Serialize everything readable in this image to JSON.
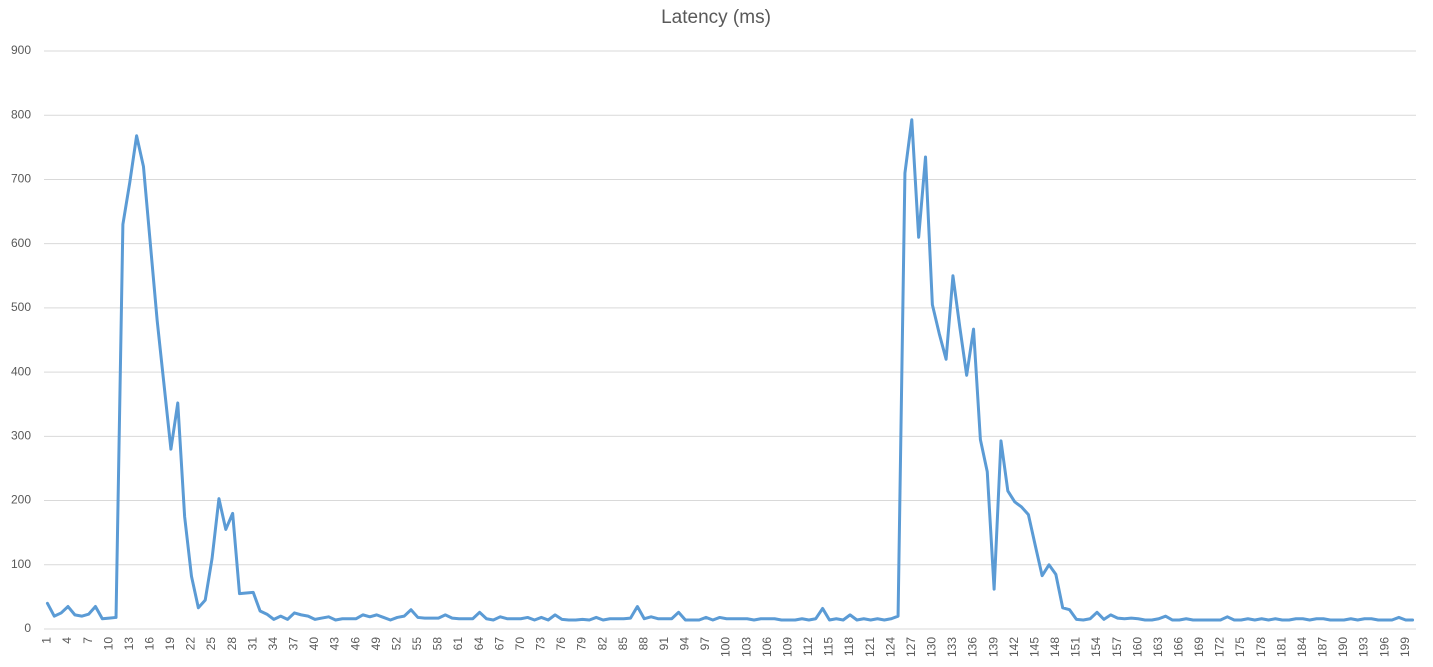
{
  "chart_data": {
    "type": "line",
    "title": "Latency (ms)",
    "categories": [
      1,
      null,
      null,
      4,
      null,
      null,
      7,
      null,
      null,
      10,
      null,
      null,
      13,
      null,
      null,
      16,
      null,
      null,
      19,
      null,
      null,
      22,
      null,
      null,
      25,
      null,
      null,
      28,
      null,
      null,
      31,
      null,
      null,
      34,
      null,
      null,
      37,
      null,
      null,
      40,
      null,
      null,
      43,
      null,
      null,
      46,
      null,
      null,
      49,
      null,
      null,
      52,
      null,
      null,
      55,
      null,
      null,
      58,
      null,
      null,
      61,
      null,
      null,
      64,
      null,
      null,
      67,
      null,
      null,
      70,
      null,
      null,
      73,
      null,
      null,
      76,
      null,
      null,
      79,
      null,
      null,
      82,
      null,
      null,
      85,
      null,
      null,
      88,
      null,
      null,
      91,
      null,
      null,
      94,
      null,
      null,
      97,
      null,
      null,
      100,
      null,
      null,
      103,
      null,
      null,
      106,
      null,
      null,
      109,
      null,
      null,
      112,
      null,
      null,
      115,
      null,
      null,
      118,
      null,
      null,
      121,
      null,
      null,
      124,
      null,
      null,
      127,
      null,
      null,
      130,
      null,
      null,
      133,
      null,
      null,
      136,
      null,
      null,
      139,
      null,
      null,
      142,
      null,
      null,
      145,
      null,
      null,
      148,
      null,
      null,
      151,
      null,
      null,
      154,
      null,
      null,
      157,
      null,
      null,
      160,
      null,
      null,
      163,
      null,
      null,
      166,
      null,
      null,
      169,
      null,
      null,
      172,
      null,
      null,
      175,
      null,
      null,
      178,
      null,
      null,
      181,
      null,
      null,
      184,
      null,
      null,
      187,
      null,
      null,
      190,
      null,
      null,
      193,
      null,
      null,
      196,
      null,
      null,
      199,
      null
    ],
    "series": [
      {
        "name": null,
        "color": "#5b9bd5",
        "values": [
          40,
          20,
          25,
          35,
          22,
          20,
          23,
          35,
          16,
          17,
          18,
          630,
          695,
          768,
          720,
          600,
          480,
          380,
          280,
          352,
          175,
          82,
          33,
          45,
          110,
          203,
          155,
          180,
          55,
          56,
          57,
          28,
          23,
          15,
          20,
          15,
          25,
          22,
          20,
          15,
          17,
          19,
          14,
          16,
          16,
          16,
          22,
          19,
          22,
          18,
          14,
          18,
          20,
          30,
          18,
          17,
          17,
          17,
          22,
          17,
          16,
          16,
          16,
          26,
          16,
          14,
          19,
          16,
          16,
          16,
          18,
          14,
          18,
          14,
          22,
          15,
          14,
          14,
          15,
          14,
          18,
          14,
          16,
          16,
          16,
          17,
          35,
          16,
          19,
          16,
          16,
          16,
          26,
          14,
          14,
          14,
          18,
          14,
          18,
          16,
          16,
          16,
          16,
          14,
          16,
          16,
          16,
          14,
          14,
          14,
          16,
          14,
          16,
          32,
          14,
          16,
          14,
          22,
          14,
          16,
          14,
          16,
          14,
          16,
          20,
          710,
          793,
          610,
          735,
          505,
          460,
          420,
          550,
          470,
          395,
          467,
          295,
          245,
          62,
          293,
          215,
          198,
          190,
          178,
          130,
          83,
          100,
          85,
          33,
          30,
          15,
          14,
          16,
          26,
          15,
          22,
          17,
          16,
          17,
          16,
          14,
          14,
          16,
          20,
          14,
          14,
          16,
          14,
          14,
          14,
          14,
          14,
          19,
          14,
          14,
          16,
          14,
          16,
          14,
          16,
          14,
          14,
          16,
          16,
          14,
          16,
          16,
          14,
          14,
          14,
          16,
          14,
          16,
          16,
          14,
          14,
          14,
          18,
          14,
          14
        ]
      }
    ],
    "ylim": [
      0,
      900
    ],
    "yticks": [
      0,
      100,
      200,
      300,
      400,
      500,
      600,
      700,
      800,
      900
    ],
    "grid": true
  }
}
